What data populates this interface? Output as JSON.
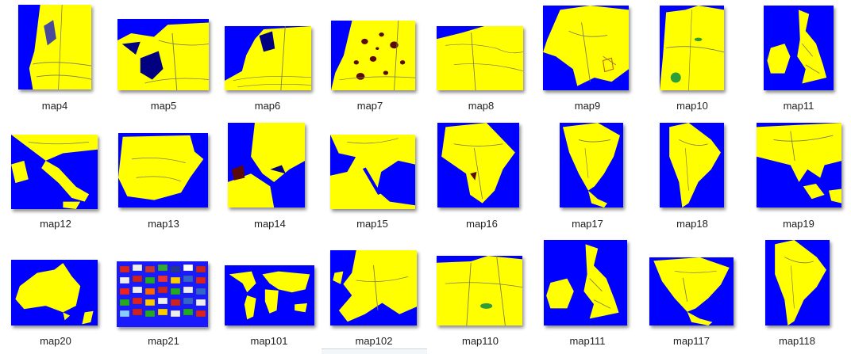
{
  "colors": {
    "sea": "#0000ff",
    "land": "#ffff00",
    "border": "#7a7a55",
    "lake": "#000080",
    "green": "#2e9e3a",
    "brown": "#5a0a0a"
  },
  "files": [
    {
      "name": "map4",
      "kind": "netherlands-coast"
    },
    {
      "name": "map5",
      "kind": "netherlands-north"
    },
    {
      "name": "map6",
      "kind": "netherlands-rivers"
    },
    {
      "name": "map7",
      "kind": "holland-detail"
    },
    {
      "name": "map8",
      "kind": "benelux"
    },
    {
      "name": "map9",
      "kind": "france"
    },
    {
      "name": "map10",
      "kind": "germany"
    },
    {
      "name": "map11",
      "kind": "british-isles"
    },
    {
      "name": "map12",
      "kind": "italy"
    },
    {
      "name": "map13",
      "kind": "iberia"
    },
    {
      "name": "map14",
      "kind": "scandinavia"
    },
    {
      "name": "map15",
      "kind": "middle-east"
    },
    {
      "name": "map16",
      "kind": "africa"
    },
    {
      "name": "map17",
      "kind": "north-america"
    },
    {
      "name": "map18",
      "kind": "south-america"
    },
    {
      "name": "map19",
      "kind": "asia"
    },
    {
      "name": "map20",
      "kind": "australia"
    },
    {
      "name": "map21",
      "kind": "flags"
    },
    {
      "name": "map101",
      "kind": "world"
    },
    {
      "name": "map102",
      "kind": "europe"
    },
    {
      "name": "map110",
      "kind": "germany-detail"
    },
    {
      "name": "map111",
      "kind": "british-isles"
    },
    {
      "name": "map117",
      "kind": "north-america"
    },
    {
      "name": "map118",
      "kind": "south-america"
    }
  ]
}
